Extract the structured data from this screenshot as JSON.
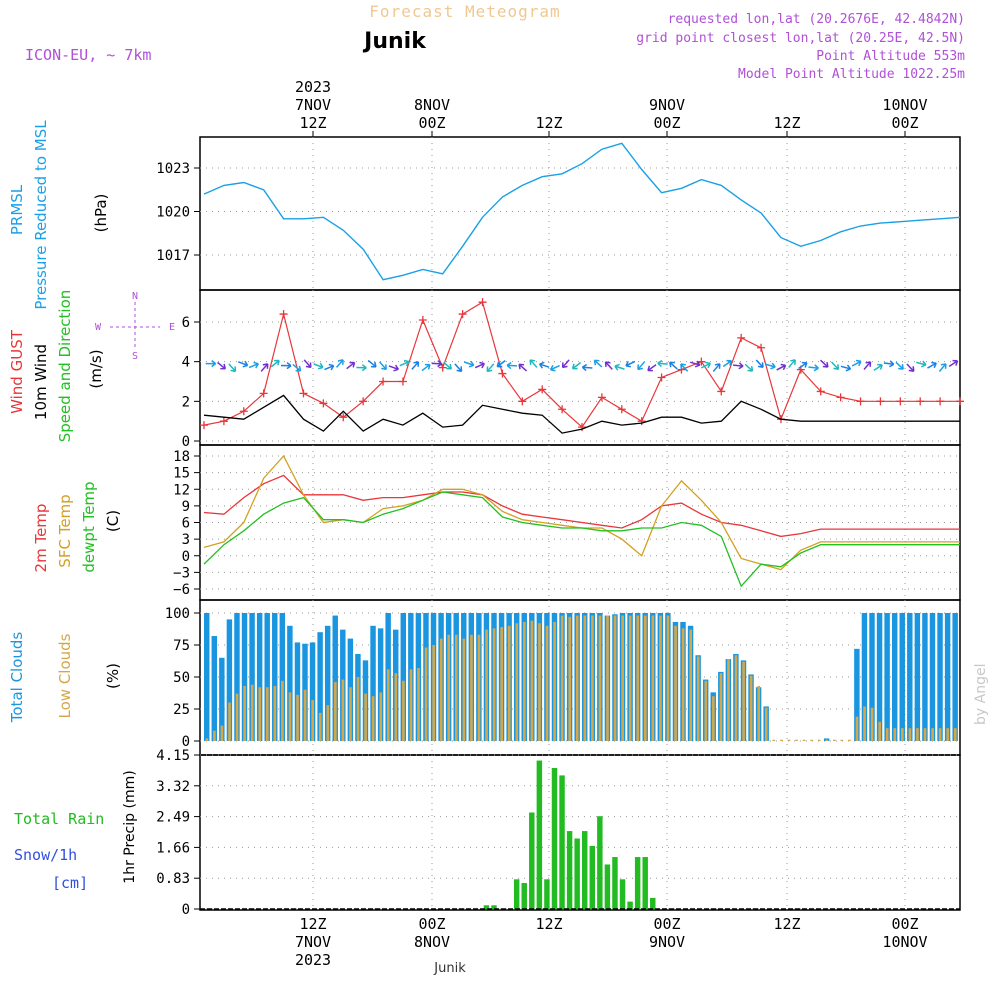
{
  "header": {
    "top_title": "Forecast Meteogram",
    "station": "Junik",
    "model": "ICON-EU, ~ 7km",
    "requested": "requested lon,lat (20.2676E, 42.4842N)",
    "gridpoint": "grid point closest lon,lat (20.25E, 42.5N)",
    "point_alt": "Point Altitude 553m",
    "model_alt": "Model Point Altitude 1022.25m",
    "footer_station": "Junik",
    "byline": "by Angel"
  },
  "time_axis": {
    "top_labels": [
      {
        "l1": "2023",
        "l2": "7NOV",
        "l3": "12Z"
      },
      {
        "l1": "",
        "l2": "8NOV",
        "l3": "00Z"
      },
      {
        "l1": "",
        "l2": "",
        "l3": "12Z"
      },
      {
        "l1": "",
        "l2": "9NOV",
        "l3": "00Z"
      },
      {
        "l1": "",
        "l2": "",
        "l3": "12Z"
      },
      {
        "l1": "",
        "l2": "10NOV",
        "l3": "00Z"
      }
    ],
    "bottom_labels": [
      {
        "l1": "12Z",
        "l2": "7NOV",
        "l3": "2023"
      },
      {
        "l1": "00Z",
        "l2": "8NOV",
        "l3": ""
      },
      {
        "l1": "12Z",
        "l2": "",
        "l3": ""
      },
      {
        "l1": "00Z",
        "l2": "9NOV",
        "l3": ""
      },
      {
        "l1": "12Z",
        "l2": "",
        "l3": ""
      },
      {
        "l1": "00Z",
        "l2": "10NOV",
        "l3": ""
      }
    ]
  },
  "colors": {
    "pressure": "#1aa0e6",
    "gust": "#e8363a",
    "wind": "#000000",
    "sfc_temp": "#d4a020",
    "dewpt": "#22c022",
    "total_cloud": "#1a96e0",
    "low_cloud": "#d4a84a",
    "rain": "#22bb22",
    "snow": "#3050e0",
    "meta": "#b050d8",
    "title_faded": "#f0c890"
  },
  "chart_data": [
    {
      "type": "line",
      "panel": "pressure",
      "ylabel_1": "PRMSL",
      "ylabel_2": "Pressure Reduced to MSL",
      "unit": "(hPa)",
      "yticks": [
        1017,
        1020,
        1023
      ],
      "ylim": [
        1015,
        1025.3
      ],
      "x_hours": [
        0,
        3,
        6,
        9,
        12,
        15,
        18,
        21,
        24,
        27,
        30,
        33,
        36,
        39,
        42,
        45,
        48,
        51,
        54,
        57,
        60,
        63,
        66,
        69,
        72,
        75,
        78,
        81,
        84,
        87,
        90,
        93,
        96,
        99,
        102,
        105,
        108,
        111,
        114
      ],
      "series": [
        {
          "name": "PRMSL",
          "values": [
            1021.2,
            1021.8,
            1022.0,
            1021.5,
            1019.5,
            1019.5,
            1019.6,
            1018.7,
            1017.4,
            1015.3,
            1015.6,
            1016.0,
            1015.7,
            1017.6,
            1019.6,
            1021.0,
            1021.8,
            1022.4,
            1022.6,
            1023.3,
            1024.3,
            1024.7,
            1022.9,
            1021.3,
            1021.6,
            1022.2,
            1021.8,
            1020.8,
            1019.9,
            1018.2,
            1017.6,
            1018.0,
            1018.6,
            1019.0,
            1019.2,
            1019.3,
            1019.4,
            1019.5,
            1019.6
          ]
        }
      ]
    },
    {
      "type": "line",
      "panel": "wind",
      "ylabel_1": "Wind GUST",
      "ylabel_2": "10m Wind",
      "ylabel_3": "Speed and Direction",
      "unit": "(m/s)",
      "compass": {
        "n": "N",
        "s": "S",
        "e": "E",
        "w": "W"
      },
      "yticks": [
        0,
        2,
        4,
        6
      ],
      "ylim": [
        0,
        7.5
      ],
      "x_hours": [
        0,
        3,
        6,
        9,
        12,
        15,
        18,
        21,
        24,
        27,
        30,
        33,
        36,
        39,
        42,
        45,
        48,
        51,
        54,
        57,
        60,
        63,
        66,
        69,
        72,
        75,
        78,
        81,
        84,
        87,
        90,
        93,
        96,
        99,
        102,
        105,
        108,
        111,
        114
      ],
      "series": [
        {
          "name": "Wind GUST",
          "values": [
            0.8,
            1.0,
            1.5,
            2.4,
            6.4,
            2.4,
            1.9,
            1.2,
            2.0,
            3.0,
            3.0,
            6.1,
            3.7,
            6.4,
            7.0,
            3.4,
            2.0,
            2.6,
            1.6,
            0.7,
            2.2,
            1.6,
            1.0,
            3.2,
            3.6,
            4.0,
            2.5,
            5.2,
            4.7,
            1.1,
            3.6,
            2.5,
            2.2,
            2.0,
            2.0,
            2.0,
            2.0,
            2.0,
            2.0
          ]
        },
        {
          "name": "10m Wind",
          "values": [
            1.3,
            1.2,
            1.1,
            1.7,
            2.3,
            1.1,
            0.5,
            1.5,
            0.5,
            1.1,
            0.8,
            1.4,
            0.7,
            0.8,
            1.8,
            1.6,
            1.4,
            1.3,
            0.4,
            0.6,
            1.0,
            0.8,
            0.9,
            1.2,
            1.2,
            0.9,
            1.0,
            2.0,
            1.6,
            1.1,
            1.0,
            1.0,
            1.0,
            1.0,
            1.0,
            1.0,
            1.0,
            1.0,
            1.0
          ]
        }
      ]
    },
    {
      "type": "line",
      "panel": "temperature",
      "ylabel_1": "2m Temp",
      "ylabel_2": "SFC Temp",
      "ylabel_3": "dewpt Temp",
      "unit": "(C)",
      "yticks": [
        -6,
        -3,
        0,
        3,
        6,
        9,
        12,
        15,
        18
      ],
      "ylim": [
        -7,
        19
      ],
      "x_hours": [
        0,
        3,
        6,
        9,
        12,
        15,
        18,
        21,
        24,
        27,
        30,
        33,
        36,
        39,
        42,
        45,
        48,
        51,
        54,
        57,
        60,
        63,
        66,
        69,
        72,
        75,
        78,
        81,
        84,
        87,
        90,
        93,
        96,
        99,
        102,
        105,
        108,
        111,
        114
      ],
      "series": [
        {
          "name": "2m Temp",
          "values": [
            7.8,
            7.5,
            10.5,
            13.0,
            14.5,
            11.0,
            11.0,
            11.0,
            10.0,
            10.5,
            10.5,
            11.0,
            11.5,
            11.5,
            11.0,
            9.0,
            7.5,
            7.0,
            6.5,
            6.0,
            5.5,
            5.0,
            6.5,
            9.0,
            9.5,
            7.5,
            6.0,
            5.5,
            4.5,
            3.5,
            4.0,
            4.8,
            4.8,
            4.8,
            4.8,
            4.8,
            4.8,
            4.8,
            4.8
          ]
        },
        {
          "name": "SFC Temp",
          "values": [
            1.5,
            2.5,
            6.0,
            14.0,
            18.0,
            11.0,
            6.0,
            6.5,
            6.0,
            8.5,
            9.0,
            10.0,
            12.0,
            12.0,
            11.0,
            8.0,
            6.5,
            6.0,
            5.5,
            5.0,
            5.0,
            3.0,
            0.0,
            9.0,
            13.5,
            10.0,
            6.0,
            -0.5,
            -1.5,
            -2.5,
            1.0,
            2.5,
            2.5,
            2.5,
            2.5,
            2.5,
            2.5,
            2.5,
            2.5
          ]
        },
        {
          "name": "dewpt Temp",
          "values": [
            -1.5,
            2.0,
            4.5,
            7.5,
            9.5,
            10.5,
            6.5,
            6.5,
            6.0,
            7.5,
            8.5,
            10.0,
            11.5,
            11.0,
            10.5,
            7.0,
            6.0,
            5.5,
            5.0,
            5.0,
            4.5,
            4.5,
            5.0,
            5.0,
            6.0,
            5.5,
            3.5,
            -5.5,
            -1.5,
            -2.0,
            0.5,
            2.0,
            2.0,
            2.0,
            2.0,
            2.0,
            2.0,
            2.0,
            2.0
          ]
        }
      ]
    },
    {
      "type": "bar",
      "panel": "clouds",
      "ylabel_1": "Total Clouds",
      "ylabel_2": "Low Clouds",
      "unit": "(%)",
      "yticks": [
        0,
        25,
        50,
        75,
        100
      ],
      "ylim": [
        0,
        100
      ],
      "series": [
        {
          "name": "Total Clouds",
          "values": [
            100,
            82,
            65,
            95,
            100,
            100,
            100,
            100,
            100,
            100,
            100,
            90,
            77,
            76,
            77,
            85,
            90,
            98,
            87,
            80,
            68,
            63,
            90,
            88,
            100,
            87,
            100,
            100,
            100,
            100,
            100,
            100,
            100,
            100,
            100,
            100,
            100,
            100,
            100,
            100,
            100,
            100,
            100,
            100,
            100,
            100,
            100,
            100,
            100,
            100,
            100,
            100,
            100,
            98,
            99,
            100,
            100,
            100,
            100,
            100,
            100,
            100,
            93,
            93,
            90,
            67,
            48,
            38,
            54,
            64,
            68,
            63,
            52,
            42,
            27,
            0,
            0,
            0,
            0,
            0,
            0,
            0,
            2,
            0,
            0,
            0,
            72,
            100,
            100,
            100,
            100,
            100,
            100,
            100,
            100,
            100,
            100,
            100,
            100,
            100
          ]
        },
        {
          "name": "Low Clouds",
          "values": [
            2,
            8,
            12,
            30,
            37,
            43,
            44,
            42,
            42,
            43,
            47,
            38,
            36,
            40,
            32,
            22,
            28,
            46,
            48,
            42,
            50,
            37,
            35,
            38,
            56,
            53,
            47,
            56,
            57,
            73,
            75,
            80,
            83,
            83,
            80,
            83,
            83,
            87,
            88,
            89,
            90,
            92,
            93,
            94,
            92,
            90,
            93,
            98,
            97,
            98,
            98,
            98,
            98,
            98,
            98,
            98,
            98,
            98,
            98,
            98,
            98,
            98,
            90,
            88,
            87,
            66,
            47,
            35,
            53,
            64,
            67,
            62,
            51,
            43,
            26,
            1,
            1,
            1,
            1,
            1,
            1,
            1,
            1,
            1,
            1,
            1,
            19,
            27,
            26,
            15,
            10,
            10,
            10,
            10,
            10,
            10,
            10,
            10,
            10,
            10
          ]
        }
      ]
    },
    {
      "type": "bar",
      "panel": "precip",
      "ylabel_1": "Total  Rain",
      "ylabel_2": "Snow/1h",
      "ylabel_3": "[cm]",
      "unit": "1hr Precip (mm)",
      "yticks": [
        0,
        0.83,
        1.66,
        2.49,
        3.32,
        4.15
      ],
      "ylim": [
        0,
        4.15
      ],
      "series": [
        {
          "name": "Total Rain",
          "values": [
            0,
            0,
            0,
            0,
            0,
            0,
            0,
            0,
            0,
            0,
            0,
            0,
            0,
            0,
            0,
            0,
            0,
            0,
            0,
            0,
            0,
            0,
            0,
            0,
            0,
            0,
            0,
            0,
            0,
            0,
            0,
            0,
            0,
            0,
            0,
            0,
            0,
            0.1,
            0.1,
            0,
            0,
            0.8,
            0.7,
            2.6,
            4.0,
            0.8,
            3.8,
            3.6,
            2.1,
            1.9,
            2.1,
            1.7,
            2.5,
            1.2,
            1.4,
            0.8,
            0.2,
            1.4,
            1.4,
            0.3,
            0,
            0,
            0,
            0,
            0,
            0,
            0,
            0,
            0,
            0,
            0,
            0,
            0,
            0,
            0,
            0,
            0,
            0,
            0,
            0,
            0,
            0,
            0,
            0,
            0,
            0,
            0,
            0,
            0,
            0,
            0,
            0,
            0,
            0,
            0,
            0,
            0,
            0,
            0,
            0
          ]
        }
      ]
    }
  ]
}
